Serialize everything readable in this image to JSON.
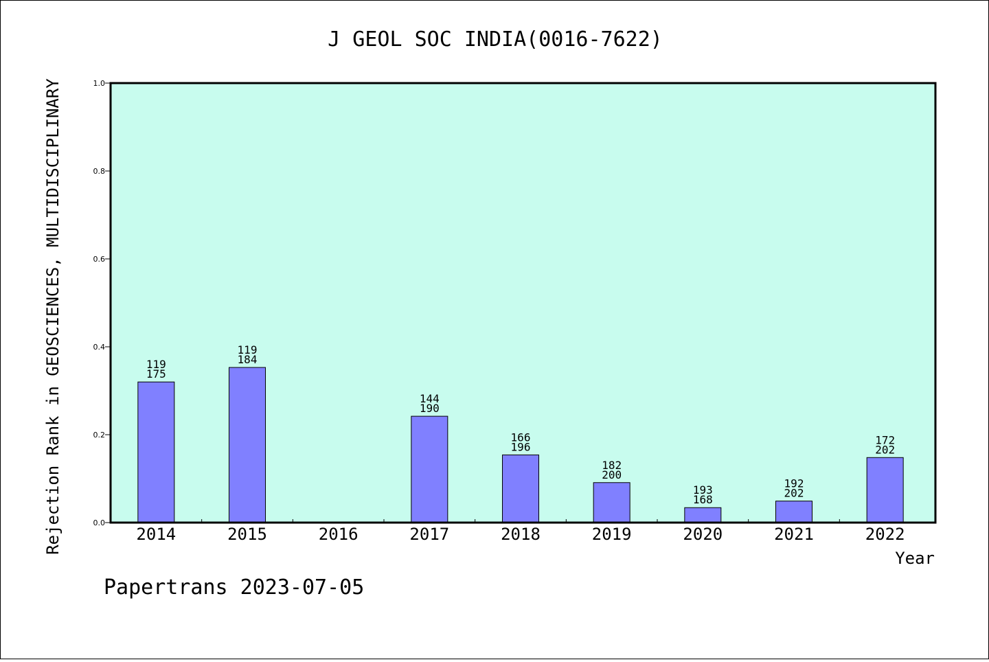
{
  "chart_data": {
    "type": "bar",
    "title": "J GEOL SOC INDIA(0016-7622)",
    "ylabel": "Rejection Rank in GEOSCIENCES, MULTIDISCIPLINARY",
    "xlabel": "Year",
    "ylim": [
      0,
      1.0
    ],
    "yticks": [
      "0.0",
      "0.2",
      "0.4",
      "0.6",
      "0.8",
      "1.0"
    ],
    "grid": false,
    "colors": {
      "plot_bg": "#c8fcee",
      "bar": "#8080ff",
      "bar_edge": "#000000"
    },
    "categories": [
      "2014",
      "2015",
      "2016",
      "2017",
      "2018",
      "2019",
      "2020",
      "2021",
      "2022"
    ],
    "values": [
      0.32,
      0.353,
      null,
      0.242,
      0.154,
      0.091,
      0.034,
      0.049,
      0.148
    ],
    "labels_top": [
      "119",
      "119",
      "",
      "144",
      "166",
      "182",
      "193",
      "192",
      "172"
    ],
    "labels_bottom": [
      "175",
      "184",
      "",
      "190",
      "196",
      "200",
      "168",
      "202",
      "202"
    ]
  },
  "footer": {
    "credit": "Papertrans 2023-07-05"
  }
}
